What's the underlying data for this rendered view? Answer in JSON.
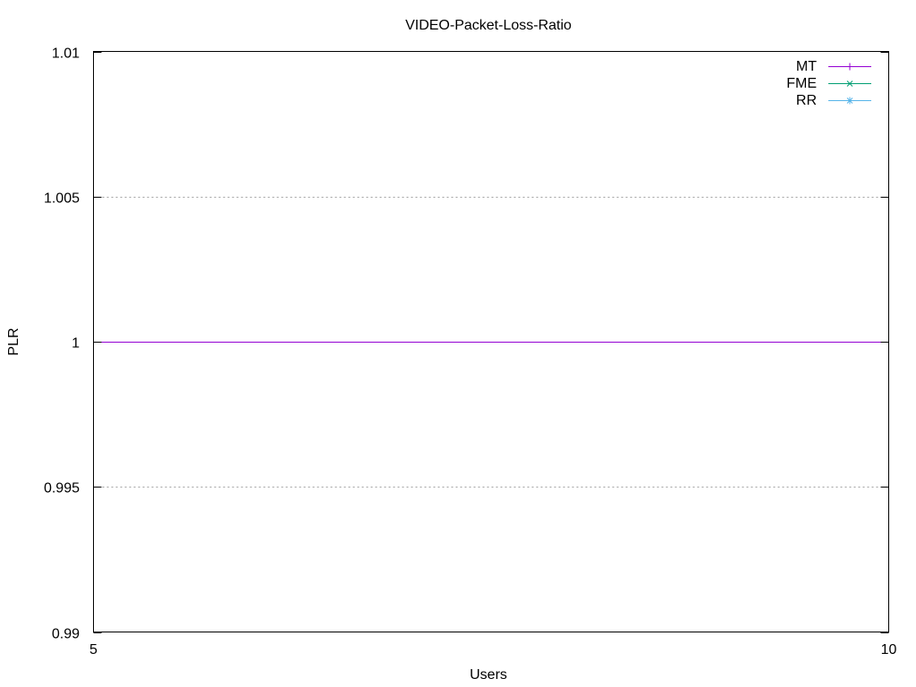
{
  "chart_data": {
    "type": "line",
    "title": "VIDEO-Packet-Loss-Ratio",
    "xlabel": "Users",
    "ylabel": "PLR",
    "xlim": [
      5,
      10
    ],
    "ylim": [
      0.99,
      1.01
    ],
    "x_ticks": [
      {
        "value": 5,
        "label": "5"
      },
      {
        "value": 10,
        "label": "10"
      }
    ],
    "y_ticks": [
      {
        "value": 0.99,
        "label": "0.99"
      },
      {
        "value": 0.995,
        "label": "0.995"
      },
      {
        "value": 1,
        "label": "1"
      },
      {
        "value": 1.005,
        "label": "1.005"
      },
      {
        "value": 1.01,
        "label": "1.01"
      }
    ],
    "grid": {
      "y": true,
      "x": false
    },
    "legend_position": "top-right",
    "series": [
      {
        "name": "MT",
        "color": "#9400d3",
        "marker": "plus",
        "x": [
          5,
          10
        ],
        "y": [
          1,
          1
        ]
      },
      {
        "name": "FME",
        "color": "#009e73",
        "marker": "cross",
        "x": [
          5,
          10
        ],
        "y": [
          1,
          1
        ]
      },
      {
        "name": "RR",
        "color": "#56b4e9",
        "marker": "star",
        "x": [
          5,
          10
        ],
        "y": [
          1,
          1
        ]
      }
    ]
  }
}
